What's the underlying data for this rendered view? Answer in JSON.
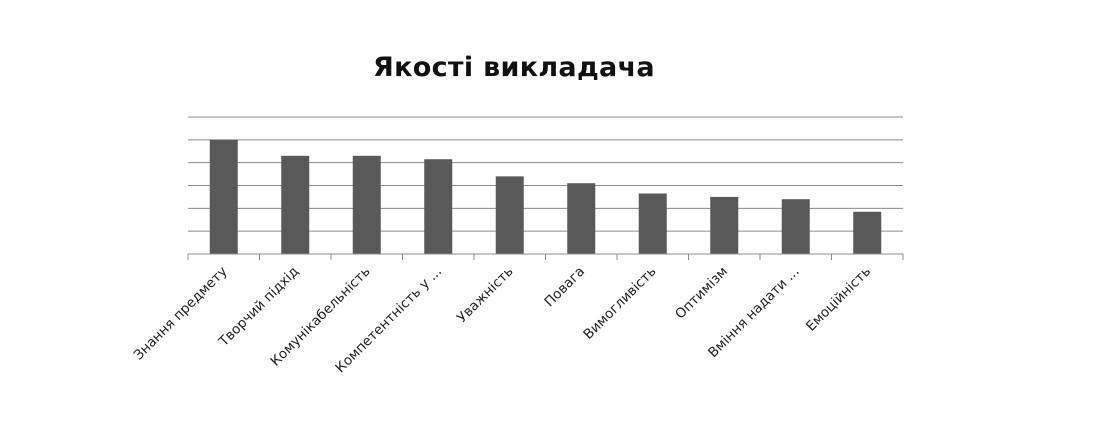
{
  "chart_data": {
    "type": "bar",
    "title": "Якості викладача",
    "xlabel": "",
    "ylabel": "",
    "categories": [
      "Знання предмету",
      "Творчий підхід",
      "Комунікабельність",
      "Компетентність у ...",
      "Уважність",
      "Повага",
      "Вимогливість",
      "Оптимізм",
      "Вміння надати ...",
      "Емоційність"
    ],
    "values": [
      5.0,
      4.3,
      4.3,
      4.15,
      3.4,
      3.1,
      2.65,
      2.5,
      2.4,
      1.85
    ],
    "ylim": [
      0,
      6
    ],
    "grid": true,
    "legend": "none",
    "bar_color": "#595959",
    "grid_color": "#8c8c8c"
  }
}
